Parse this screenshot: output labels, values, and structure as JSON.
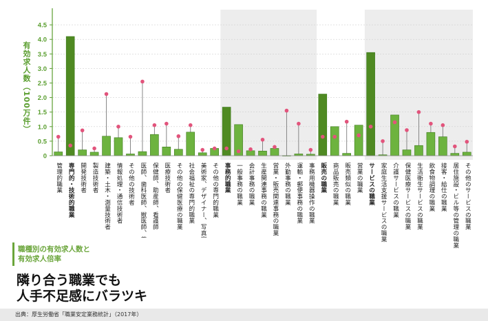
{
  "chart_data": {
    "type": "bar",
    "ylabel": "有効求人数",
    "yunit": "（100万件）",
    "ylim": [
      0,
      4.5
    ],
    "yticks": [
      "4.5",
      "4.0",
      "3.5",
      "3.0",
      "2.5",
      "2.0",
      "1.5",
      "1.0",
      "0.5",
      "0"
    ],
    "categories": [
      "管理的職業",
      "専門的・技術的職業",
      "開発技術者",
      "製造技術者",
      "建築・土木・測量技術者",
      "情報処理・通信技術者",
      "その他の技術者",
      "医師、歯科医師、獣医師、薬剤師",
      "保健師、助産師、看護師",
      "医療技術者",
      "その他の保健医療の職業",
      "社会福祉の専門的職業",
      "美術家、デザイナー、写真家、映像撮影者",
      "その他の専門的職業",
      "事務的職業",
      "一般事務の職業",
      "会計事務の職業",
      "生産関連事務の職業",
      "営業・販売関連事務の職業",
      "外勤事務の職業",
      "運輸・郵便事務の職業",
      "事務用機器操作の職業",
      "販売の職業",
      "商品販売の職業",
      "販売類似の職業",
      "営業の職業",
      "サービスの職業",
      "家庭生活支援サービスの職業",
      "介護サービスの職業",
      "保健医療サービスの職業",
      "生活衛生サービスの職業",
      "飲食物調理の職業",
      "接客・給仕の職業",
      "居住施設・ビル等の管理の職業",
      "その他のサービスの職業"
    ],
    "series": [
      {
        "name": "有効求人数",
        "values": [
          0.13,
          4.1,
          0.2,
          0.12,
          0.67,
          0.62,
          0.06,
          0.14,
          0.73,
          0.3,
          0.22,
          0.81,
          0.1,
          0.25,
          1.67,
          1.07,
          0.17,
          0.16,
          0.25,
          0.0,
          0.06,
          0.05,
          2.12,
          1.0,
          0.08,
          1.05,
          3.55,
          0.03,
          1.4,
          0.2,
          0.35,
          0.8,
          0.65,
          0.08,
          0.12
        ]
      },
      {
        "name": "有効求人倍率",
        "values": [
          0.65,
          0.35,
          0.87,
          0.25,
          2.12,
          1.0,
          0.65,
          2.55,
          1.05,
          1.1,
          0.67,
          1.05,
          0.2,
          0.25,
          0.25,
          0.15,
          0.22,
          0.55,
          0.3,
          1.55,
          1.1,
          0.2,
          0.65,
          0.65,
          1.17,
          0.7,
          1.0,
          0.5,
          1.15,
          0.88,
          1.5,
          1.1,
          1.05,
          0.32,
          0.48
        ]
      }
    ],
    "highlight_groups": [
      1,
      14,
      22,
      26
    ],
    "colors": {
      "bar_group": "#4f8a22",
      "bar": "#6db33f",
      "bar_outline": "#3d7a1c",
      "dot": "#e2547c",
      "stem": "#7a7a7a",
      "shade": "#ededed",
      "axis": "#5a9e2f",
      "grid": "#cfcfcf"
    }
  },
  "title": {
    "subtitle": "職種別の有効求人数と\n有効求人倍率",
    "main": "隣り合う職業でも\n人手不足感にバラツキ"
  },
  "source": "出典：厚生労働省「職業安定業務統計」（2017年）"
}
